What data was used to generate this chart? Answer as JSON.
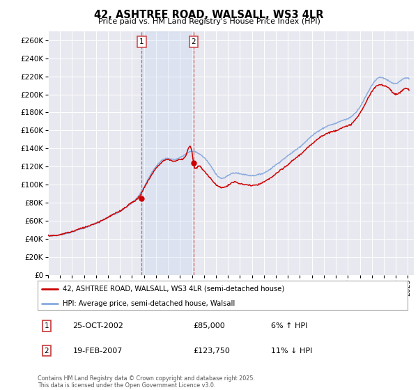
{
  "title": "42, ASHTREE ROAD, WALSALL, WS3 4LR",
  "subtitle": "Price paid vs. HM Land Registry's House Price Index (HPI)",
  "ylim": [
    0,
    270000
  ],
  "yticks": [
    0,
    20000,
    40000,
    60000,
    80000,
    100000,
    120000,
    140000,
    160000,
    180000,
    200000,
    220000,
    240000,
    260000
  ],
  "background_color": "#ffffff",
  "plot_bg_color": "#e8e8f0",
  "grid_color": "#ffffff",
  "transaction1": {
    "date_str": "25-OCT-2002",
    "price": 85000,
    "hpi_pct": "6% ↑ HPI",
    "x_year": 2002.81
  },
  "transaction2": {
    "date_str": "19-FEB-2007",
    "price": 123750,
    "hpi_pct": "11% ↓ HPI",
    "x_year": 2007.13
  },
  "legend_line1": "42, ASHTREE ROAD, WALSALL, WS3 4LR (semi-detached house)",
  "legend_line2": "HPI: Average price, semi-detached house, Walsall",
  "footer": "Contains HM Land Registry data © Crown copyright and database right 2025.\nThis data is licensed under the Open Government Licence v3.0.",
  "line_color_red": "#cc0000",
  "line_color_blue": "#88aadd",
  "xtick_years": [
    1995,
    1996,
    1997,
    1998,
    1999,
    2000,
    2001,
    2002,
    2003,
    2004,
    2005,
    2006,
    2007,
    2008,
    2009,
    2010,
    2011,
    2012,
    2013,
    2014,
    2015,
    2016,
    2017,
    2018,
    2019,
    2020,
    2021,
    2022,
    2023,
    2024,
    2025
  ],
  "hpi_knots": [
    [
      1995.0,
      44000
    ],
    [
      1995.5,
      43500
    ],
    [
      1996.0,
      44500
    ],
    [
      1996.5,
      46000
    ],
    [
      1997.0,
      47500
    ],
    [
      1997.5,
      50000
    ],
    [
      1998.0,
      52000
    ],
    [
      1998.5,
      54500
    ],
    [
      1999.0,
      57000
    ],
    [
      1999.5,
      60000
    ],
    [
      2000.0,
      63500
    ],
    [
      2000.5,
      67000
    ],
    [
      2001.0,
      70000
    ],
    [
      2001.5,
      75000
    ],
    [
      2002.0,
      80000
    ],
    [
      2002.5,
      87000
    ],
    [
      2003.0,
      97000
    ],
    [
      2003.5,
      110000
    ],
    [
      2004.0,
      120000
    ],
    [
      2004.5,
      127000
    ],
    [
      2005.0,
      129000
    ],
    [
      2005.5,
      128000
    ],
    [
      2006.0,
      130000
    ],
    [
      2006.5,
      134000
    ],
    [
      2007.0,
      137000
    ],
    [
      2007.5,
      135000
    ],
    [
      2008.0,
      130000
    ],
    [
      2008.5,
      122000
    ],
    [
      2009.0,
      112000
    ],
    [
      2009.5,
      107000
    ],
    [
      2010.0,
      110000
    ],
    [
      2010.5,
      113000
    ],
    [
      2011.0,
      112000
    ],
    [
      2011.5,
      111000
    ],
    [
      2012.0,
      110000
    ],
    [
      2012.5,
      111000
    ],
    [
      2013.0,
      113000
    ],
    [
      2013.5,
      117000
    ],
    [
      2014.0,
      122000
    ],
    [
      2014.5,
      127000
    ],
    [
      2015.0,
      132000
    ],
    [
      2015.5,
      137000
    ],
    [
      2016.0,
      142000
    ],
    [
      2016.5,
      148000
    ],
    [
      2017.0,
      154000
    ],
    [
      2017.5,
      159000
    ],
    [
      2018.0,
      163000
    ],
    [
      2018.5,
      166000
    ],
    [
      2019.0,
      168000
    ],
    [
      2019.5,
      171000
    ],
    [
      2020.0,
      173000
    ],
    [
      2020.5,
      178000
    ],
    [
      2021.0,
      186000
    ],
    [
      2021.5,
      198000
    ],
    [
      2022.0,
      210000
    ],
    [
      2022.5,
      218000
    ],
    [
      2023.0,
      218000
    ],
    [
      2023.5,
      214000
    ],
    [
      2024.0,
      212000
    ],
    [
      2024.5,
      216000
    ],
    [
      2025.0,
      218000
    ]
  ],
  "pp_knots": [
    [
      1995.0,
      44000
    ],
    [
      1995.5,
      43500
    ],
    [
      1996.0,
      44500
    ],
    [
      1996.5,
      46500
    ],
    [
      1997.0,
      48000
    ],
    [
      1997.5,
      50500
    ],
    [
      1998.0,
      52500
    ],
    [
      1998.5,
      55000
    ],
    [
      1999.0,
      57500
    ],
    [
      1999.5,
      60500
    ],
    [
      2000.0,
      64000
    ],
    [
      2000.5,
      67500
    ],
    [
      2001.0,
      71000
    ],
    [
      2001.5,
      75500
    ],
    [
      2002.0,
      80500
    ],
    [
      2002.5,
      85000
    ],
    [
      2003.0,
      96000
    ],
    [
      2003.5,
      108000
    ],
    [
      2004.0,
      118000
    ],
    [
      2004.5,
      125000
    ],
    [
      2005.0,
      128000
    ],
    [
      2005.5,
      126000
    ],
    [
      2006.0,
      128000
    ],
    [
      2006.5,
      133000
    ],
    [
      2007.0,
      136000
    ],
    [
      2007.13,
      123750
    ],
    [
      2007.5,
      120000
    ],
    [
      2008.0,
      115000
    ],
    [
      2008.5,
      108000
    ],
    [
      2009.0,
      100000
    ],
    [
      2009.5,
      97000
    ],
    [
      2010.0,
      99000
    ],
    [
      2010.5,
      103000
    ],
    [
      2011.0,
      101000
    ],
    [
      2011.5,
      100000
    ],
    [
      2012.0,
      99000
    ],
    [
      2012.5,
      100000
    ],
    [
      2013.0,
      103000
    ],
    [
      2013.5,
      107000
    ],
    [
      2014.0,
      112000
    ],
    [
      2014.5,
      117000
    ],
    [
      2015.0,
      122000
    ],
    [
      2015.5,
      128000
    ],
    [
      2016.0,
      133000
    ],
    [
      2016.5,
      139000
    ],
    [
      2017.0,
      145000
    ],
    [
      2017.5,
      151000
    ],
    [
      2018.0,
      155000
    ],
    [
      2018.5,
      158000
    ],
    [
      2019.0,
      160000
    ],
    [
      2019.5,
      163000
    ],
    [
      2020.0,
      165000
    ],
    [
      2020.5,
      170000
    ],
    [
      2021.0,
      179000
    ],
    [
      2021.5,
      191000
    ],
    [
      2022.0,
      203000
    ],
    [
      2022.5,
      210000
    ],
    [
      2023.0,
      210000
    ],
    [
      2023.5,
      206000
    ],
    [
      2024.0,
      200000
    ],
    [
      2024.5,
      204000
    ],
    [
      2025.0,
      206000
    ]
  ]
}
